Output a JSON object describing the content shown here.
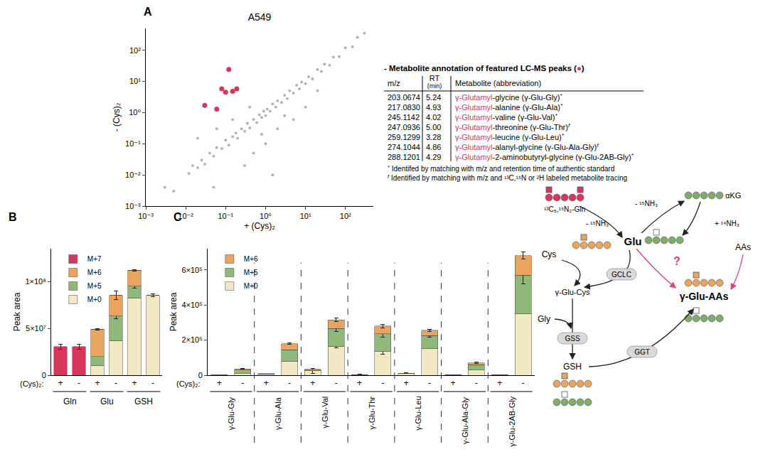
{
  "chart_data": [
    {
      "type": "scatter",
      "panel_label": "A",
      "title": "A549",
      "x_label": "+ (Cys)₂",
      "y_label": "- (Cys)₂",
      "log": true,
      "grid": false,
      "xlim": [
        0.001,
        500
      ],
      "ylim": [
        0.001,
        500
      ],
      "xticks": [
        {
          "value": 0.001,
          "label": "10⁻³"
        },
        {
          "value": 0.01,
          "label": "10⁻²"
        },
        {
          "value": 0.1,
          "label": "10⁻¹"
        },
        {
          "value": 1,
          "label": "10⁰"
        },
        {
          "value": 10,
          "label": "10¹"
        },
        {
          "value": 100,
          "label": "10²"
        }
      ],
      "yticks": [
        {
          "value": 0.001,
          "label": "10⁻³"
        },
        {
          "value": 0.01,
          "label": "10⁻²"
        },
        {
          "value": 0.1,
          "label": "10⁻¹"
        },
        {
          "value": 1,
          "label": "10⁰"
        },
        {
          "value": 10,
          "label": "10¹"
        },
        {
          "value": 100,
          "label": "10²"
        }
      ],
      "series": [
        {
          "color": "#b3b3b3",
          "marker": "circle",
          "x": [
            0.012,
            0.015,
            0.02,
            0.025,
            0.03,
            0.04,
            0.05,
            0.06,
            0.08,
            0.1,
            0.12,
            0.15,
            0.18,
            0.2,
            0.25,
            0.3,
            0.35,
            0.4,
            0.5,
            0.6,
            0.7,
            0.8,
            0.9,
            1,
            1.1,
            1.3,
            1.5,
            1.8,
            2,
            2.5,
            3,
            3.5,
            4,
            5,
            6,
            7,
            8,
            10,
            12,
            15,
            20,
            25,
            30,
            40,
            50,
            70,
            100,
            150,
            200,
            300,
            0.3,
            0.5,
            1,
            2,
            5,
            0.02,
            0.005,
            0.003,
            0.05,
            10,
            0.8,
            3,
            0.15,
            0.4,
            0.06,
            20,
            1.5
          ],
          "y": [
            0.011,
            0.02,
            0.017,
            0.03,
            0.022,
            0.05,
            0.04,
            0.075,
            0.07,
            0.13,
            0.09,
            0.17,
            0.22,
            0.15,
            0.3,
            0.25,
            0.45,
            0.32,
            0.6,
            0.48,
            0.85,
            0.7,
            1.1,
            0.8,
            1.3,
            1.1,
            1.9,
            1.5,
            2.4,
            2.1,
            3.6,
            2.8,
            5,
            4.2,
            7.5,
            5.8,
            9.5,
            8.5,
            14,
            12,
            24,
            21,
            36,
            33,
            60,
            62,
            120,
            130,
            260,
            350,
            0.02,
            0.05,
            0.1,
            0.3,
            0.6,
            0.15,
            0.003,
            0.004,
            0.004,
            1.5,
            0.2,
            0.8,
            0.6,
            1.5,
            0.3,
            5,
            0.01
          ]
        },
        {
          "color": "#d8365c",
          "marker": "circle",
          "x": [
            0.03,
            0.06,
            0.08,
            0.1,
            0.12,
            0.15,
            0.19
          ],
          "y": [
            1.7,
            1.3,
            5.8,
            4.5,
            24,
            4.8,
            5.8
          ]
        }
      ]
    },
    {
      "type": "bar",
      "panel_label": "B",
      "stacked": true,
      "grid": false,
      "legend": "upper left",
      "y_label": "Peak area",
      "category_label": "(Cys)₂:",
      "categories": [
        "+",
        "-",
        "+",
        "-",
        "+",
        "-"
      ],
      "groups": [
        {
          "label": "Gln",
          "members": [
            0,
            1
          ]
        },
        {
          "label": "Glu",
          "members": [
            2,
            3
          ]
        },
        {
          "label": "GSH",
          "members": [
            4,
            5
          ]
        }
      ],
      "ylim": [
        0,
        135000000
      ],
      "yticks": [
        0,
        {
          "value": 50000000,
          "label": "5×10⁷"
        },
        {
          "value": 100000000,
          "label": "1×10⁸"
        }
      ],
      "series": [
        {
          "name": "M+0",
          "color": "#f2e8c4",
          "values": [
            0,
            0,
            10000000,
            37000000,
            82000000,
            85000000
          ],
          "errors": [
            null,
            null,
            null,
            null,
            null,
            1500000
          ]
        },
        {
          "name": "M+5",
          "color": "#8fb87a",
          "values": [
            0,
            0,
            10000000,
            26000000,
            13000000,
            0
          ],
          "errors": [
            null,
            null,
            null,
            3000000,
            2000000,
            null
          ]
        },
        {
          "name": "M+6",
          "color": "#e9a45f",
          "values": [
            0,
            0,
            29000000,
            22000000,
            17000000,
            0
          ],
          "errors": [
            null,
            null,
            1000000,
            4500000,
            1000000,
            null
          ]
        },
        {
          "name": "M+7",
          "color": "#d8365c",
          "values": [
            30500000,
            30500000,
            0,
            0,
            0,
            0
          ],
          "errors": [
            2500000,
            2500000,
            null,
            null,
            null,
            null
          ]
        }
      ]
    },
    {
      "type": "bar",
      "panel_label": "C",
      "stacked": true,
      "grid": false,
      "legend": "upper left",
      "y_label": "Peak area",
      "category_label": "(Cys)₂:",
      "categories": [
        "+",
        "-",
        "+",
        "-",
        "+",
        "-",
        "+",
        "-",
        "+",
        "-",
        "+",
        "-",
        "+",
        "-"
      ],
      "groups": [
        {
          "label": "γ-Glu-Gly",
          "members": [
            0,
            1
          ]
        },
        {
          "label": "γ-Glu-Ala",
          "members": [
            2,
            3
          ]
        },
        {
          "label": "γ-Glu-Val",
          "members": [
            4,
            5
          ]
        },
        {
          "label": "γ-Glu-Thr",
          "members": [
            6,
            7
          ]
        },
        {
          "label": "γ-Glu-Leu",
          "members": [
            8,
            9
          ]
        },
        {
          "label": "γ-Glu-Ala-Gly",
          "members": [
            10,
            11
          ]
        },
        {
          "label": "γ-Glu-2AB-Gly",
          "members": [
            12,
            13
          ]
        }
      ],
      "ylim": [
        0,
        720000
      ],
      "yticks": [
        0,
        {
          "value": 200000,
          "label": "2×10⁵"
        },
        {
          "value": 400000,
          "label": "4×10⁵"
        },
        {
          "value": 600000,
          "label": "6×10⁵"
        }
      ],
      "series": [
        {
          "name": "M+0",
          "color": "#f2e8c4",
          "values": [
            2000,
            10000,
            5000,
            80000,
            25000,
            165000,
            4000,
            135000,
            12000,
            150000,
            3000,
            30000,
            4000,
            350000
          ],
          "errors": [
            null,
            null,
            null,
            null,
            15000,
            10000,
            2000,
            15000,
            2000,
            null,
            null,
            null,
            null,
            null
          ]
        },
        {
          "name": "M+5",
          "color": "#8fb87a",
          "values": [
            0,
            20000,
            3000,
            65000,
            5000,
            100000,
            0,
            100000,
            0,
            75000,
            0,
            30000,
            0,
            220000
          ],
          "errors": [
            null,
            null,
            null,
            null,
            null,
            15000,
            null,
            20000,
            null,
            10000,
            null,
            null,
            null,
            50000
          ]
        },
        {
          "name": "M+6",
          "color": "#e9a45f",
          "values": [
            1000,
            6000,
            2000,
            35000,
            3000,
            50000,
            0,
            45000,
            0,
            30000,
            0,
            10000,
            0,
            110000
          ],
          "errors": [
            null,
            3000,
            null,
            5000,
            null,
            10000,
            null,
            10000,
            null,
            5000,
            null,
            4000,
            null,
            20000
          ]
        }
      ]
    }
  ],
  "table": {
    "title": [
      "- Metabolite annotation of featured LC-MS peaks (",
      "●",
      ")"
    ],
    "highlight": "γ-Glutamyl",
    "color": "#d8365c",
    "header": [
      [
        "m/z"
      ],
      [
        "RT",
        "(min)"
      ],
      [
        "Metabolite (abbreviation)"
      ]
    ],
    "rows": [
      [
        "203.0674",
        "5.24",
        "γ-Glutamyl-glycine (γ-Glu-Gly)",
        "*"
      ],
      [
        "217.0830",
        "4.93",
        "γ-Glutamyl-alanine (γ-Glu-Ala)",
        "*"
      ],
      [
        "245.1142",
        "4.02",
        "γ-Glutamyl-valine (γ-Glu-Val)",
        "*"
      ],
      [
        "247.0936",
        "5.00",
        "γ-Glutamyl-threonine (γ-Glu-Thr)",
        "f"
      ],
      [
        "259.1299",
        "3.28",
        "γ-Glutamyl-leucine (γ-Glu-Leu)",
        "*"
      ],
      [
        "274.1044",
        "4.86",
        "γ-Glutamyl-alanyl-glycine (γ-Glu-Ala-Gly)",
        "f"
      ],
      [
        "288.1201",
        "4.29",
        "γ-Glutamyl-2-aminobutyryl-glycine (γ-Glu-2AB-Gly)",
        "*"
      ]
    ],
    "footnotes": [
      {
        "mark": "*",
        "text": "Identifed by matching with m/z and retention time of authentic standard"
      },
      {
        "mark": "f",
        "text": "Identified by matching with m/z and ¹³C,¹⁵N or ²H labeled metabolite tracing"
      }
    ]
  },
  "diagram": {
    "gln": "¹³C₅,¹⁵N₂-Gln",
    "gln_loss": "- ¹⁵NH₃",
    "glu_loss": "- ¹⁵NH₃",
    "akg_gain": "+ ¹⁴NH₃",
    "akg": "αKG",
    "glu": "Glu",
    "cys": "Cys",
    "aas": "AAs",
    "gclc": "GCLC",
    "glu_cys": "γ-Glu-Cys",
    "gly": "Gly",
    "gss": "GSS",
    "gsh": "GSH",
    "ggt": "GGT",
    "product": "γ-Glu-AAs",
    "unknown": "?"
  }
}
